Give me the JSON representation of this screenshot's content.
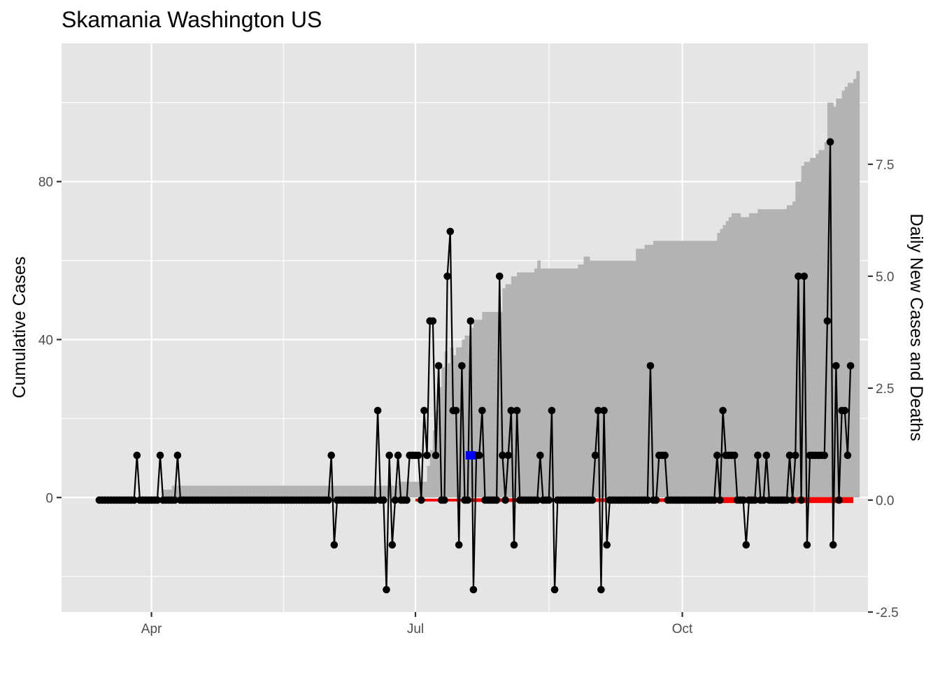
{
  "chart_data": {
    "type": "line",
    "title": "Skamania Washington US",
    "ylabel": "Cumulative Cases",
    "y2label": "Daily New Cases and Deaths",
    "xlabel": "",
    "x_start": "2020-03-01",
    "x_end": "2020-12-04",
    "x_ticks": [
      {
        "date": "2020-04-01",
        "label": "Apr"
      },
      {
        "date": "2020-07-01",
        "label": "Jul"
      },
      {
        "date": "2020-10-01",
        "label": "Oct"
      }
    ],
    "ylim": [
      -29,
      115
    ],
    "y_ticks": [
      0,
      40,
      80
    ],
    "y2lim": [
      -2.5,
      10.2
    ],
    "y2_ticks": [
      "-2.5",
      "0.0",
      "2.5",
      "5.0",
      "7.5"
    ],
    "grid": true,
    "legend": "none",
    "colors": {
      "panel": "#e5e5e5",
      "grid": "#ffffff",
      "cumulative_fill": "#b3b3b3",
      "daily_line": "#000000",
      "deaths": "#ff0000",
      "highlight": "#0000ff"
    },
    "series": [
      {
        "kind": "step-area",
        "axis": "left",
        "values_by_segment": [
          [
            "2020-03-01",
            0
          ],
          [
            "2020-04-05",
            2
          ],
          [
            "2020-04-08",
            3
          ],
          [
            "2020-06-25",
            4
          ],
          [
            "2020-07-05",
            8
          ],
          [
            "2020-07-06",
            12
          ],
          [
            "2020-07-07",
            17
          ],
          [
            "2020-07-08",
            22
          ],
          [
            "2020-07-09",
            28
          ],
          [
            "2020-07-10",
            33
          ],
          [
            "2020-07-11",
            37
          ],
          [
            "2020-07-12",
            34
          ],
          [
            "2020-07-13",
            38
          ],
          [
            "2020-07-14",
            36
          ],
          [
            "2020-07-15",
            38
          ],
          [
            "2020-07-16",
            38
          ],
          [
            "2020-07-17",
            40
          ],
          [
            "2020-07-18",
            41
          ],
          [
            "2020-07-20",
            43
          ],
          [
            "2020-07-21",
            45
          ],
          [
            "2020-07-24",
            47
          ],
          [
            "2020-07-31",
            53
          ],
          [
            "2020-08-01",
            54
          ],
          [
            "2020-08-03",
            56
          ],
          [
            "2020-08-05",
            57
          ],
          [
            "2020-08-11",
            58
          ],
          [
            "2020-08-12",
            60
          ],
          [
            "2020-08-13",
            58
          ],
          [
            "2020-08-26",
            59
          ],
          [
            "2020-08-28",
            61
          ],
          [
            "2020-08-30",
            60
          ],
          [
            "2020-09-15",
            63
          ],
          [
            "2020-09-18",
            64
          ],
          [
            "2020-09-21",
            65
          ],
          [
            "2020-10-13",
            67
          ],
          [
            "2020-10-14",
            68
          ],
          [
            "2020-10-15",
            69
          ],
          [
            "2020-10-16",
            70
          ],
          [
            "2020-10-17",
            71
          ],
          [
            "2020-10-18",
            72
          ],
          [
            "2020-10-21",
            71
          ],
          [
            "2020-10-24",
            72
          ],
          [
            "2020-10-27",
            73
          ],
          [
            "2020-11-06",
            74
          ],
          [
            "2020-11-08",
            75
          ],
          [
            "2020-11-09",
            80
          ],
          [
            "2020-11-11",
            84
          ],
          [
            "2020-11-12",
            85
          ],
          [
            "2020-11-13",
            85
          ],
          [
            "2020-11-14",
            86
          ],
          [
            "2020-11-16",
            87
          ],
          [
            "2020-11-17",
            88
          ],
          [
            "2020-11-19",
            90
          ],
          [
            "2020-11-20",
            100
          ],
          [
            "2020-11-22",
            99
          ],
          [
            "2020-11-23",
            101
          ],
          [
            "2020-11-25",
            103
          ],
          [
            "2020-11-26",
            104
          ],
          [
            "2020-11-27",
            105
          ],
          [
            "2020-11-29",
            106
          ],
          [
            "2020-11-30",
            108
          ],
          [
            "2020-12-01",
            108
          ]
        ]
      },
      {
        "kind": "line-points",
        "axis": "right",
        "start": "2020-03-14",
        "nonzero": [
          [
            "2020-03-27",
            1
          ],
          [
            "2020-04-04",
            1
          ],
          [
            "2020-04-10",
            1
          ],
          [
            "2020-06-02",
            1
          ],
          [
            "2020-06-03",
            -1
          ],
          [
            "2020-06-18",
            2
          ],
          [
            "2020-06-21",
            -2
          ],
          [
            "2020-06-22",
            1
          ],
          [
            "2020-06-23",
            -1
          ],
          [
            "2020-06-25",
            1
          ],
          [
            "2020-06-29",
            1
          ],
          [
            "2020-06-30",
            1
          ],
          [
            "2020-07-01",
            1
          ],
          [
            "2020-07-02",
            1
          ],
          [
            "2020-07-04",
            2
          ],
          [
            "2020-07-05",
            1
          ],
          [
            "2020-07-06",
            4
          ],
          [
            "2020-07-07",
            4
          ],
          [
            "2020-07-08",
            1
          ],
          [
            "2020-07-09",
            3
          ],
          [
            "2020-07-12",
            5
          ],
          [
            "2020-07-13",
            6
          ],
          [
            "2020-07-14",
            2
          ],
          [
            "2020-07-15",
            2
          ],
          [
            "2020-07-16",
            -1
          ],
          [
            "2020-07-17",
            3
          ],
          [
            "2020-07-20",
            4
          ],
          [
            "2020-07-21",
            -2
          ],
          [
            "2020-07-22",
            1
          ],
          [
            "2020-07-23",
            1
          ],
          [
            "2020-07-24",
            2
          ],
          [
            "2020-07-30",
            5
          ],
          [
            "2020-07-31",
            1
          ],
          [
            "2020-08-02",
            1
          ],
          [
            "2020-08-03",
            2
          ],
          [
            "2020-08-04",
            -1
          ],
          [
            "2020-08-05",
            2
          ],
          [
            "2020-08-13",
            1
          ],
          [
            "2020-08-17",
            2
          ],
          [
            "2020-08-18",
            -2
          ],
          [
            "2020-09-01",
            1
          ],
          [
            "2020-09-02",
            2
          ],
          [
            "2020-09-03",
            -2
          ],
          [
            "2020-09-04",
            2
          ],
          [
            "2020-09-05",
            -1
          ],
          [
            "2020-09-20",
            3
          ],
          [
            "2020-09-23",
            1
          ],
          [
            "2020-09-24",
            1
          ],
          [
            "2020-09-25",
            1
          ],
          [
            "2020-10-13",
            1
          ],
          [
            "2020-10-15",
            2
          ],
          [
            "2020-10-16",
            1
          ],
          [
            "2020-10-17",
            1
          ],
          [
            "2020-10-18",
            1
          ],
          [
            "2020-10-19",
            1
          ],
          [
            "2020-10-23",
            -1
          ],
          [
            "2020-10-27",
            1
          ],
          [
            "2020-10-30",
            1
          ],
          [
            "2020-11-07",
            1
          ],
          [
            "2020-11-09",
            1
          ],
          [
            "2020-11-10",
            5
          ],
          [
            "2020-11-12",
            5
          ],
          [
            "2020-11-13",
            -1
          ],
          [
            "2020-11-14",
            1
          ],
          [
            "2020-11-15",
            1
          ],
          [
            "2020-11-16",
            1
          ],
          [
            "2020-11-17",
            1
          ],
          [
            "2020-11-18",
            1
          ],
          [
            "2020-11-19",
            1
          ],
          [
            "2020-11-20",
            4
          ],
          [
            "2020-11-21",
            8
          ],
          [
            "2020-11-22",
            -1
          ],
          [
            "2020-11-23",
            3
          ],
          [
            "2020-11-25",
            2
          ],
          [
            "2020-11-26",
            2
          ],
          [
            "2020-11-27",
            1
          ],
          [
            "2020-11-28",
            3
          ]
        ],
        "end": "2020-11-28"
      },
      {
        "kind": "deaths",
        "axis": "right",
        "segments": [
          [
            "2020-07-01",
            0
          ],
          [
            "2020-07-20",
            0.5
          ],
          [
            "2020-10-13",
            1
          ],
          [
            "2020-11-28",
            1
          ]
        ]
      }
    ],
    "highlight_point": {
      "date": "2020-07-20",
      "value": 1
    }
  }
}
